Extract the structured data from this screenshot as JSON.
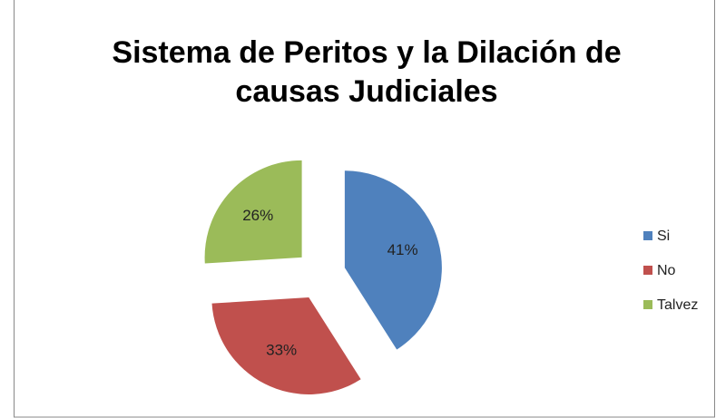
{
  "chart_data": {
    "type": "pie",
    "title_lines": [
      "Sistema de Peritos y la Dilación de",
      "causas Judiciales"
    ],
    "categories": [
      "Si",
      "No",
      "Talvez"
    ],
    "values": [
      41,
      33,
      26
    ],
    "value_labels": [
      "41%",
      "33%",
      "26%"
    ],
    "colors": [
      "#4f81bd",
      "#c0504d",
      "#9bbb59"
    ],
    "exploded": true,
    "legend": "right"
  }
}
